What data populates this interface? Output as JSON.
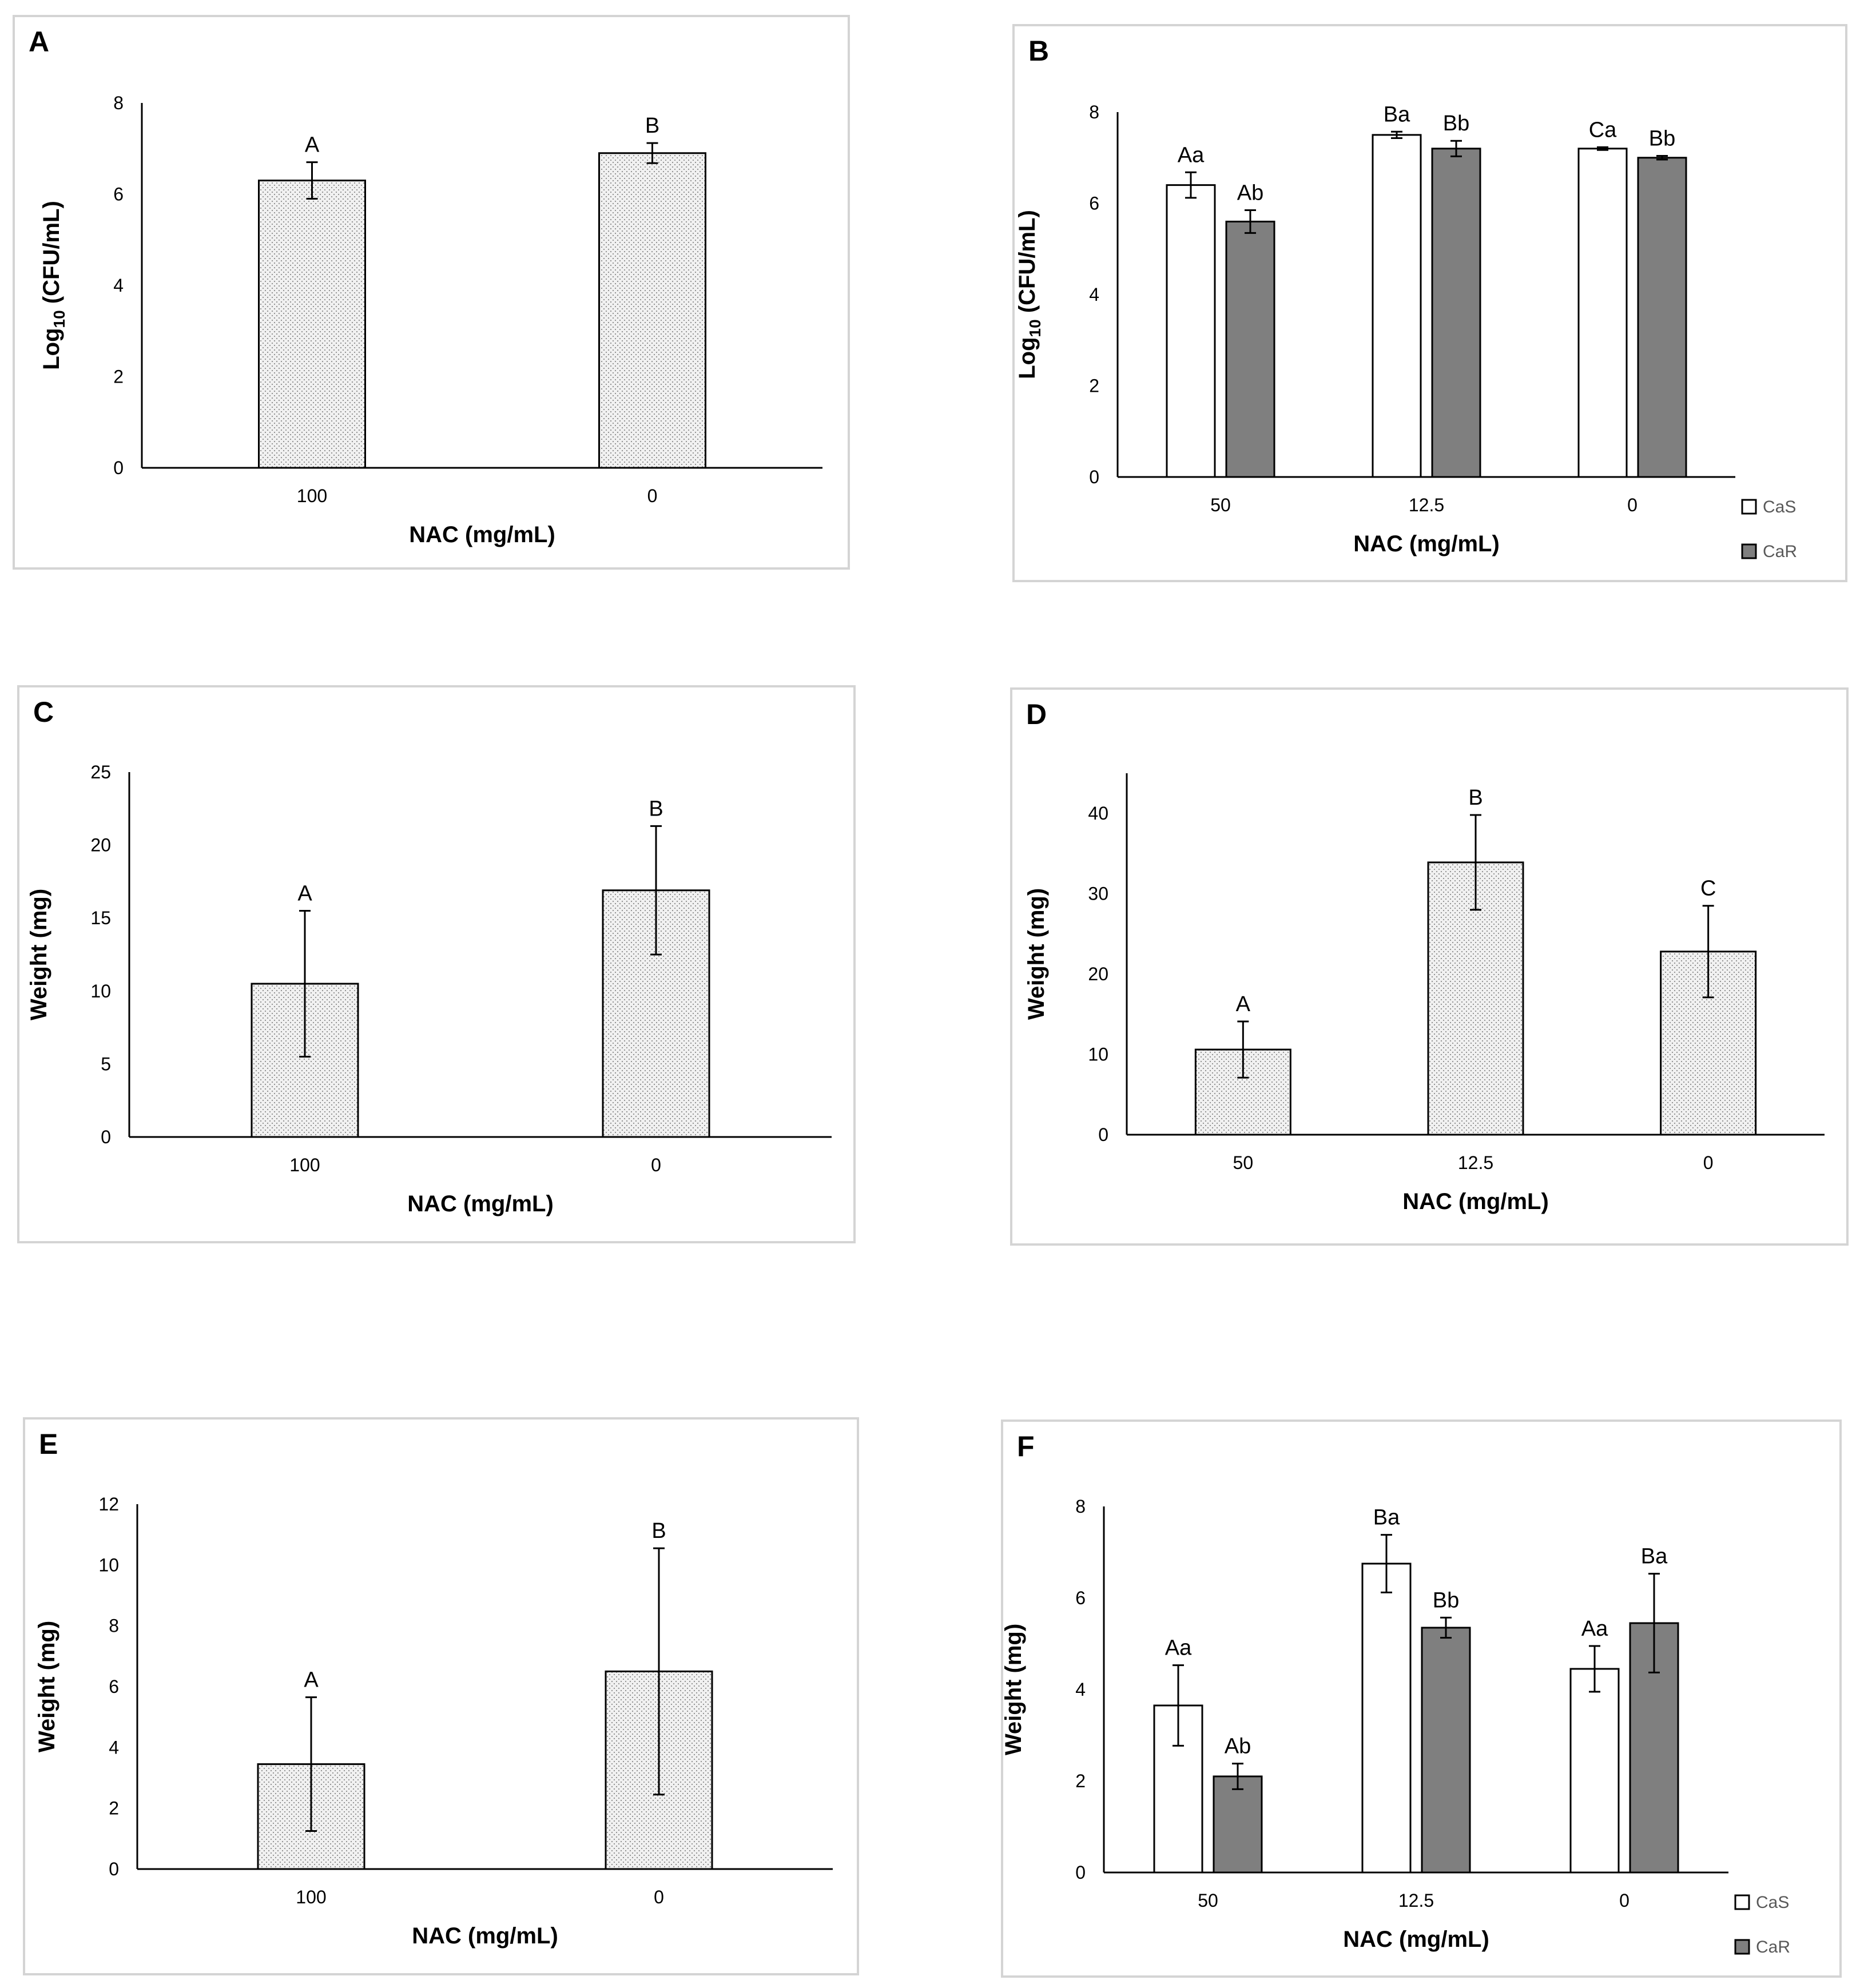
{
  "colors": {
    "cas": "#ffffff",
    "car": "#7f7f7f",
    "stipple_bg": "#f1f1f1",
    "stipple_dot": "#8a8a8a",
    "axis": "#000000",
    "border": "#d4d4d4"
  },
  "chart_data": [
    {
      "panel": "A",
      "type": "bar",
      "categories": [
        "100",
        "0"
      ],
      "series": [
        {
          "name": "",
          "style": "stipple",
          "values": [
            6.3,
            6.9
          ],
          "errors": [
            0.4,
            0.22
          ],
          "labels": [
            "A",
            "B"
          ]
        }
      ],
      "ylim": [
        0,
        8
      ],
      "yticks": [
        "0",
        "2",
        "4",
        "6",
        "8"
      ],
      "xlabel": "NAC (mg/mL)",
      "ylabel_main": "Log",
      "ylabel_sub": "10",
      "ylabel_rest": " (CFU/mL)",
      "legend": []
    },
    {
      "panel": "B",
      "type": "bar",
      "categories": [
        "50",
        "12.5",
        "0"
      ],
      "series": [
        {
          "name": "CaS",
          "style": "white",
          "values": [
            6.4,
            7.5,
            7.2
          ],
          "errors": [
            0.28,
            0.07,
            0.03
          ],
          "labels": [
            "Aa",
            "Ba",
            "Ca"
          ]
        },
        {
          "name": "CaR",
          "style": "gray",
          "values": [
            5.6,
            7.2,
            7.0
          ],
          "errors": [
            0.25,
            0.17,
            0.04
          ],
          "labels": [
            "Ab",
            "Bb",
            "Bb"
          ]
        }
      ],
      "ylim": [
        0,
        8
      ],
      "yticks": [
        "0",
        "2",
        "4",
        "6",
        "8"
      ],
      "xlabel": "NAC (mg/mL)",
      "ylabel_main": "Log",
      "ylabel_sub": "10",
      "ylabel_rest": " (CFU/mL)",
      "legend": [
        "CaS",
        "CaR"
      ]
    },
    {
      "panel": "C",
      "type": "bar",
      "categories": [
        "100",
        "0"
      ],
      "series": [
        {
          "name": "",
          "style": "stipple",
          "values": [
            10.5,
            16.9
          ],
          "errors": [
            5.0,
            4.4
          ],
          "labels": [
            "A",
            "B"
          ]
        }
      ],
      "ylim": [
        0,
        25
      ],
      "yticks": [
        "0",
        "5",
        "10",
        "15",
        "20",
        "25"
      ],
      "xlabel": "NAC (mg/mL)",
      "ylabel_main": "Weight (mg)",
      "ylabel_sub": "",
      "ylabel_rest": "",
      "legend": []
    },
    {
      "panel": "D",
      "type": "bar",
      "categories": [
        "50",
        "12.5",
        "0"
      ],
      "series": [
        {
          "name": "",
          "style": "stipple",
          "values": [
            10.6,
            33.9,
            22.8
          ],
          "errors": [
            3.5,
            5.9,
            5.7
          ],
          "labels": [
            "A",
            "B",
            "C"
          ]
        }
      ],
      "ylim": [
        0,
        45
      ],
      "yticks": [
        "0",
        "10",
        "20",
        "30",
        "40"
      ],
      "xlabel": "NAC (mg/mL)",
      "ylabel_main": "Weight (mg)",
      "ylabel_sub": "",
      "ylabel_rest": "",
      "legend": []
    },
    {
      "panel": "E",
      "type": "bar",
      "categories": [
        "100",
        "0"
      ],
      "series": [
        {
          "name": "",
          "style": "stipple",
          "values": [
            3.45,
            6.5
          ],
          "errors": [
            2.2,
            4.05
          ],
          "labels": [
            "A",
            "B"
          ]
        }
      ],
      "ylim": [
        0,
        12
      ],
      "yticks": [
        "0",
        "2",
        "4",
        "6",
        "8",
        "10",
        "12"
      ],
      "xlabel": "NAC (mg/mL)",
      "ylabel_main": "Weight (mg)",
      "ylabel_sub": "",
      "ylabel_rest": "",
      "legend": []
    },
    {
      "panel": "F",
      "type": "bar",
      "categories": [
        "50",
        "12.5",
        "0"
      ],
      "series": [
        {
          "name": "CaS",
          "style": "white",
          "values": [
            3.65,
            6.75,
            4.45
          ],
          "errors": [
            0.88,
            0.63,
            0.5
          ],
          "labels": [
            "Aa",
            "Ba",
            "Aa"
          ]
        },
        {
          "name": "CaR",
          "style": "gray",
          "values": [
            2.1,
            5.35,
            5.45
          ],
          "errors": [
            0.28,
            0.22,
            1.08
          ],
          "labels": [
            "Ab",
            "Bb",
            "Ba"
          ]
        }
      ],
      "ylim": [
        0,
        8
      ],
      "yticks": [
        "0",
        "2",
        "4",
        "6",
        "8"
      ],
      "xlabel": "NAC (mg/mL)",
      "ylabel_main": "Weight (mg)",
      "ylabel_sub": "",
      "ylabel_rest": "",
      "legend": [
        "CaS",
        "CaR"
      ]
    }
  ]
}
